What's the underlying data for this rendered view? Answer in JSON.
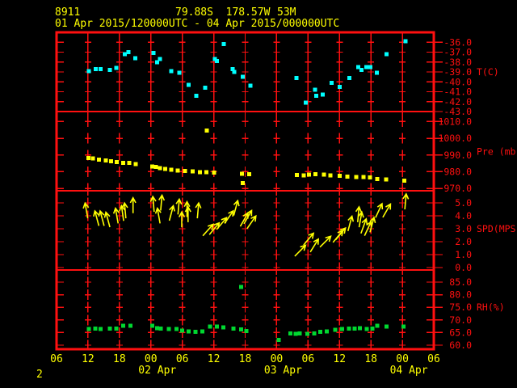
{
  "header": {
    "station_id": "8911",
    "location": "79.88S  178.57W",
    "elevation": "53M",
    "time_range": "01 Apr 2015/120000UTC - 04 Apr 2015/000000UTC"
  },
  "page_number": "2",
  "colors": {
    "background": "#000000",
    "axis_red": "#ff1010",
    "yellow": "#ffff00",
    "temperature": "#00ffff",
    "pressure": "#ffff00",
    "wind": "#ffff00",
    "humidity": "#00d830"
  },
  "x_axis": {
    "unit": "hours since 01 Apr 2015 0600UTC",
    "span_hours": 72,
    "tick_interval_hours": 6,
    "tick_labels": [
      "06",
      "12",
      "18",
      "00",
      "06",
      "12",
      "18",
      "00",
      "06",
      "12",
      "18",
      "00",
      "06"
    ],
    "date_labels": [
      {
        "text": "02 Apr",
        "tick_index": 3
      },
      {
        "text": "03 Apr",
        "tick_index": 7
      },
      {
        "text": "04 Apr",
        "tick_index": 11
      }
    ]
  },
  "chart_data": [
    {
      "type": "scatter",
      "name": "temperature",
      "ylabel": "T(C)",
      "ylabel_at": -39.0,
      "marker_color": "#00ffff",
      "ytick_labels": [
        "-36.0",
        "-37.0",
        "-38.0",
        "-39.0",
        "-40.0",
        "-41.0",
        "-42.0",
        "-43.0"
      ],
      "ytick_values": [
        -36,
        -37,
        -38,
        -39,
        -40,
        -41,
        -42,
        -43
      ],
      "y_top": -35.0,
      "y_bottom": -43.0,
      "points": [
        [
          6.2,
          -38.9
        ],
        [
          7.5,
          -38.7
        ],
        [
          8.4,
          -38.7
        ],
        [
          10.2,
          -38.8
        ],
        [
          11.4,
          -38.6
        ],
        [
          13.0,
          -37.2
        ],
        [
          13.7,
          -37.0
        ],
        [
          15.0,
          -37.6
        ],
        [
          18.5,
          -37.1
        ],
        [
          19.2,
          -38.0
        ],
        [
          19.7,
          -37.7
        ],
        [
          21.9,
          -38.9
        ],
        [
          23.4,
          -39.1
        ],
        [
          25.2,
          -40.3
        ],
        [
          26.7,
          -41.4
        ],
        [
          28.4,
          -40.6
        ],
        [
          30.2,
          -37.7
        ],
        [
          30.6,
          -37.9
        ],
        [
          31.9,
          -36.2
        ],
        [
          33.6,
          -38.7
        ],
        [
          33.9,
          -39.0
        ],
        [
          35.5,
          -39.5
        ],
        [
          37.0,
          -40.4
        ],
        [
          45.8,
          -39.6
        ],
        [
          47.6,
          -42.1
        ],
        [
          49.3,
          -40.8
        ],
        [
          49.6,
          -41.4
        ],
        [
          50.8,
          -41.3
        ],
        [
          52.5,
          -40.1
        ],
        [
          54.0,
          -40.5
        ],
        [
          55.9,
          -39.6
        ],
        [
          57.6,
          -38.5
        ],
        [
          58.2,
          -38.8
        ],
        [
          59.1,
          -38.5
        ],
        [
          59.9,
          -38.5
        ],
        [
          61.1,
          -39.1
        ],
        [
          63.0,
          -37.2
        ],
        [
          66.6,
          -35.9
        ]
      ]
    },
    {
      "type": "scatter",
      "name": "pressure",
      "ylabel": "Pre (mb)",
      "ylabel_at": 992,
      "marker_color": "#ffff00",
      "ytick_labels": [
        "1010.0",
        "1000.0",
        "990.0",
        "980.0",
        "970.0"
      ],
      "ytick_values": [
        1010,
        1000,
        990,
        980,
        970
      ],
      "y_top": 1016.0,
      "y_bottom": 968.6,
      "points": [
        [
          6.1,
          988.1
        ],
        [
          6.9,
          987.9
        ],
        [
          8.1,
          987.3
        ],
        [
          9.4,
          986.8
        ],
        [
          10.4,
          986.2
        ],
        [
          11.5,
          985.8
        ],
        [
          12.7,
          985.4
        ],
        [
          13.9,
          985.2
        ],
        [
          15.1,
          984.6
        ],
        [
          18.3,
          983.2
        ],
        [
          19.0,
          982.8
        ],
        [
          19.7,
          982.2
        ],
        [
          20.7,
          981.7
        ],
        [
          21.9,
          981.2
        ],
        [
          23.1,
          980.8
        ],
        [
          24.5,
          980.5
        ],
        [
          26.0,
          980.1
        ],
        [
          27.4,
          979.8
        ],
        [
          28.6,
          979.8
        ],
        [
          28.7,
          1004.6
        ],
        [
          30.1,
          979.5
        ],
        [
          35.4,
          978.7
        ],
        [
          35.5,
          973.3
        ],
        [
          36.8,
          978.4
        ],
        [
          45.9,
          978.0
        ],
        [
          47.2,
          977.9
        ],
        [
          48.2,
          978.2
        ],
        [
          49.4,
          978.4
        ],
        [
          51.0,
          978.2
        ],
        [
          52.3,
          977.7
        ],
        [
          54.0,
          977.5
        ],
        [
          55.5,
          977.1
        ],
        [
          57.2,
          976.8
        ],
        [
          58.6,
          976.9
        ],
        [
          59.8,
          976.5
        ],
        [
          61.2,
          975.6
        ],
        [
          62.9,
          975.4
        ],
        [
          66.4,
          974.7
        ]
      ]
    },
    {
      "type": "wind",
      "name": "wind_speed",
      "ylabel": "SPD(MPS)",
      "ylabel_at": 3.0,
      "marker_color": "#ffff00",
      "ytick_labels": [
        "5.0",
        "4.0",
        "3.0",
        "2.0",
        "1.0",
        "0.0"
      ],
      "ytick_values": [
        5,
        4,
        3,
        2,
        1,
        0
      ],
      "y_top": 5.94,
      "y_bottom": -0.19,
      "points": [
        [
          5.7,
          4.4,
          -10
        ],
        [
          7.7,
          3.8,
          -15
        ],
        [
          8.7,
          3.8,
          -15
        ],
        [
          9.8,
          3.7,
          -15
        ],
        [
          11.5,
          4.0,
          -10
        ],
        [
          12.6,
          4.2,
          -8
        ],
        [
          13.1,
          4.4,
          -5
        ],
        [
          14.6,
          4.8,
          0
        ],
        [
          18.5,
          4.9,
          -5
        ],
        [
          19.5,
          4.0,
          -10
        ],
        [
          20.0,
          5.0,
          5
        ],
        [
          21.9,
          4.2,
          15
        ],
        [
          23.3,
          4.7,
          5
        ],
        [
          23.9,
          3.7,
          0
        ],
        [
          24.9,
          4.5,
          0
        ],
        [
          25.1,
          4.1,
          0
        ],
        [
          27.0,
          4.4,
          5
        ],
        [
          28.9,
          2.9,
          42
        ],
        [
          30.1,
          3.0,
          40
        ],
        [
          31.5,
          3.4,
          40
        ],
        [
          32.9,
          3.9,
          35
        ],
        [
          34.2,
          4.6,
          15
        ],
        [
          35.8,
          3.7,
          30
        ],
        [
          36.5,
          3.9,
          30
        ],
        [
          37.2,
          3.5,
          35
        ],
        [
          46.5,
          1.3,
          45
        ],
        [
          48.1,
          2.2,
          40
        ],
        [
          49.2,
          1.7,
          32
        ],
        [
          51.3,
          2.0,
          45
        ],
        [
          53.7,
          2.4,
          40
        ],
        [
          54.2,
          2.6,
          40
        ],
        [
          56.0,
          3.4,
          15
        ],
        [
          57.6,
          4.1,
          5
        ],
        [
          58.0,
          3.7,
          10
        ],
        [
          58.6,
          3.2,
          20
        ],
        [
          59.4,
          3.0,
          25
        ],
        [
          60.2,
          3.3,
          15
        ],
        [
          61.5,
          4.4,
          25
        ],
        [
          63.0,
          4.4,
          30
        ],
        [
          66.6,
          5.1,
          5
        ]
      ]
    },
    {
      "type": "scatter",
      "name": "relative_humidity",
      "ylabel": "RH(%)",
      "ylabel_at": 75.0,
      "marker_color": "#00d830",
      "ytick_labels": [
        "85.0",
        "80.0",
        "75.0",
        "70.0",
        "65.0",
        "60.0"
      ],
      "ytick_values": [
        85,
        80,
        75,
        70,
        65,
        60
      ],
      "y_top": 89.8,
      "y_bottom": 58.4,
      "points": [
        [
          6.2,
          66.4
        ],
        [
          7.4,
          66.6
        ],
        [
          8.4,
          66.4
        ],
        [
          10.2,
          66.6
        ],
        [
          11.4,
          66.6
        ],
        [
          12.7,
          67.7
        ],
        [
          14.1,
          67.7
        ],
        [
          18.3,
          67.7
        ],
        [
          19.2,
          66.8
        ],
        [
          19.9,
          66.6
        ],
        [
          21.4,
          66.4
        ],
        [
          22.9,
          66.4
        ],
        [
          24.0,
          65.7
        ],
        [
          25.2,
          65.5
        ],
        [
          26.5,
          65.3
        ],
        [
          27.8,
          65.5
        ],
        [
          29.3,
          67.4
        ],
        [
          30.6,
          67.3
        ],
        [
          31.8,
          67.1
        ],
        [
          33.8,
          66.5
        ],
        [
          35.2,
          66.3
        ],
        [
          35.2,
          83.0
        ],
        [
          36.2,
          65.6
        ],
        [
          42.4,
          62.1
        ],
        [
          44.6,
          64.7
        ],
        [
          45.6,
          64.5
        ],
        [
          46.4,
          64.7
        ],
        [
          47.9,
          64.5
        ],
        [
          49.2,
          64.7
        ],
        [
          50.3,
          65.3
        ],
        [
          51.6,
          65.5
        ],
        [
          53.2,
          66.1
        ],
        [
          54.5,
          66.4
        ],
        [
          55.8,
          66.6
        ],
        [
          56.9,
          66.6
        ],
        [
          57.9,
          66.8
        ],
        [
          59.2,
          66.4
        ],
        [
          60.3,
          66.6
        ],
        [
          61.2,
          67.7
        ],
        [
          63.0,
          67.4
        ],
        [
          66.2,
          67.4
        ]
      ]
    }
  ]
}
